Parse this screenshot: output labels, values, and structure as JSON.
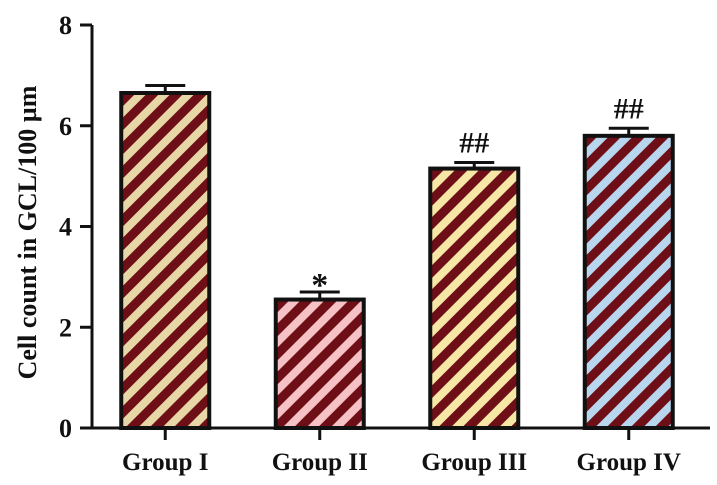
{
  "chart_data": {
    "type": "bar",
    "title": "",
    "xlabel": "",
    "ylabel": "Cell count in GCL/100 µm",
    "ylim": [
      0,
      8
    ],
    "yticks": [
      0,
      2,
      4,
      6,
      8
    ],
    "grid": false,
    "categories": [
      "Group I",
      "Group II",
      "Group III",
      "Group IV"
    ],
    "values": [
      6.65,
      2.55,
      5.15,
      5.8
    ],
    "errors": [
      0.15,
      0.15,
      0.12,
      0.15
    ],
    "annotations": [
      "",
      "*",
      "##",
      "##"
    ],
    "hatch_color": "#6e0f18",
    "bar_fill_colors": [
      "#e8d7a6",
      "#f6c2c6",
      "#f7e7a6",
      "#b9d6ef"
    ],
    "axis_color": "#111111"
  }
}
